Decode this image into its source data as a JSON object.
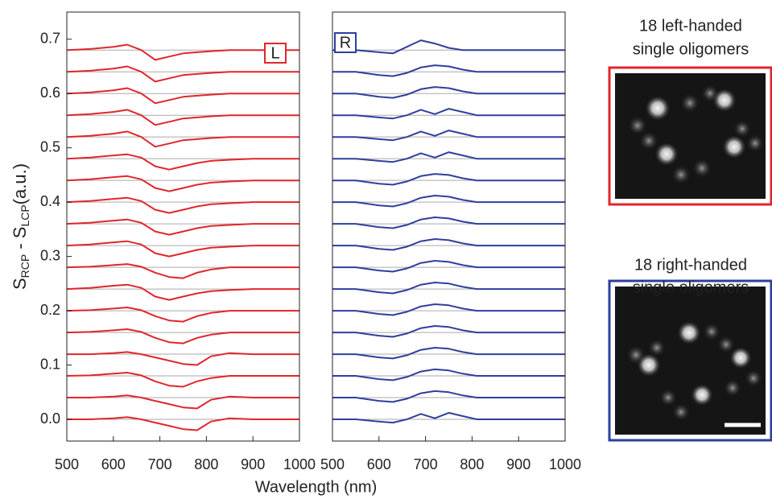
{
  "chart_data": [
    {
      "type": "line",
      "panel_label": "L",
      "color": "#e0262b",
      "ylabel": [
        "S",
        "RCP",
        " - S",
        "LCP",
        "(a.u.)"
      ],
      "xlabel": "Wavelength (nm)",
      "xlim": [
        500,
        1000
      ],
      "xticks": [
        500,
        600,
        700,
        800,
        900,
        1000
      ],
      "ylim": [
        -0.04,
        0.75
      ],
      "yticks": [
        {
          "value": 0,
          "label": "0.0"
        },
        0.1,
        0.2,
        0.3,
        0.4,
        0.5,
        0.6,
        0.7
      ],
      "baselines": [
        0,
        0.04,
        0.08,
        0.12,
        0.16,
        0.2,
        0.24,
        0.28,
        0.32,
        0.36,
        0.4,
        0.44,
        0.48,
        0.52,
        0.56,
        0.6,
        0.64,
        0.68
      ],
      "x": [
        500,
        550,
        600,
        630,
        660,
        690,
        720,
        750,
        780,
        810,
        850,
        900,
        1000
      ],
      "series": [
        {
          "values": [
            0,
            0,
            0.002,
            0.004,
            0,
            -0.006,
            -0.012,
            -0.018,
            -0.02,
            -0.004,
            0.002,
            0,
            0
          ]
        },
        {
          "values": [
            0.04,
            0.04,
            0.042,
            0.044,
            0.04,
            0.034,
            0.028,
            0.022,
            0.02,
            0.036,
            0.042,
            0.04,
            0.04
          ]
        },
        {
          "values": [
            0.08,
            0.081,
            0.084,
            0.086,
            0.081,
            0.07,
            0.062,
            0.06,
            0.07,
            0.076,
            0.08,
            0.08,
            0.08
          ]
        },
        {
          "values": [
            0.12,
            0.12,
            0.122,
            0.124,
            0.12,
            0.114,
            0.108,
            0.102,
            0.1,
            0.116,
            0.122,
            0.12,
            0.12
          ]
        },
        {
          "values": [
            0.16,
            0.161,
            0.164,
            0.166,
            0.161,
            0.15,
            0.142,
            0.14,
            0.15,
            0.156,
            0.16,
            0.16,
            0.16
          ]
        },
        {
          "values": [
            0.2,
            0.201,
            0.204,
            0.206,
            0.201,
            0.19,
            0.182,
            0.18,
            0.19,
            0.196,
            0.2,
            0.2,
            0.2
          ]
        },
        {
          "values": [
            0.24,
            0.242,
            0.246,
            0.248,
            0.242,
            0.226,
            0.22,
            0.226,
            0.232,
            0.236,
            0.238,
            0.24,
            0.24
          ]
        },
        {
          "values": [
            0.28,
            0.281,
            0.284,
            0.286,
            0.281,
            0.27,
            0.262,
            0.26,
            0.27,
            0.276,
            0.28,
            0.28,
            0.28
          ]
        },
        {
          "values": [
            0.32,
            0.322,
            0.326,
            0.328,
            0.322,
            0.306,
            0.3,
            0.306,
            0.312,
            0.316,
            0.318,
            0.32,
            0.32
          ]
        },
        {
          "values": [
            0.36,
            0.362,
            0.366,
            0.368,
            0.362,
            0.346,
            0.34,
            0.346,
            0.352,
            0.356,
            0.358,
            0.36,
            0.36
          ]
        },
        {
          "values": [
            0.4,
            0.402,
            0.406,
            0.408,
            0.402,
            0.386,
            0.38,
            0.386,
            0.392,
            0.396,
            0.398,
            0.4,
            0.4
          ]
        },
        {
          "values": [
            0.44,
            0.442,
            0.446,
            0.448,
            0.442,
            0.426,
            0.42,
            0.426,
            0.432,
            0.436,
            0.438,
            0.44,
            0.44
          ]
        },
        {
          "values": [
            0.48,
            0.482,
            0.486,
            0.488,
            0.482,
            0.466,
            0.46,
            0.466,
            0.472,
            0.476,
            0.478,
            0.48,
            0.48
          ]
        },
        {
          "values": [
            0.52,
            0.522,
            0.526,
            0.53,
            0.52,
            0.502,
            0.508,
            0.514,
            0.516,
            0.518,
            0.52,
            0.52,
            0.52
          ]
        },
        {
          "values": [
            0.56,
            0.562,
            0.566,
            0.57,
            0.56,
            0.542,
            0.548,
            0.554,
            0.556,
            0.558,
            0.56,
            0.56,
            0.56
          ]
        },
        {
          "values": [
            0.6,
            0.602,
            0.606,
            0.61,
            0.6,
            0.582,
            0.588,
            0.594,
            0.596,
            0.598,
            0.6,
            0.6,
            0.6
          ]
        },
        {
          "values": [
            0.64,
            0.642,
            0.646,
            0.65,
            0.64,
            0.622,
            0.628,
            0.634,
            0.636,
            0.638,
            0.64,
            0.64,
            0.64
          ]
        },
        {
          "values": [
            0.68,
            0.682,
            0.686,
            0.69,
            0.68,
            0.662,
            0.668,
            0.674,
            0.676,
            0.678,
            0.68,
            0.68,
            0.68
          ]
        }
      ]
    },
    {
      "type": "line",
      "panel_label": "R",
      "color": "#2e3f9c",
      "xlim": [
        500,
        1000
      ],
      "xticks": [
        500,
        600,
        700,
        800,
        900,
        1000
      ],
      "ylim": [
        -0.04,
        0.75
      ],
      "baselines": [
        0,
        0.04,
        0.08,
        0.12,
        0.16,
        0.2,
        0.24,
        0.28,
        0.32,
        0.36,
        0.4,
        0.44,
        0.48,
        0.52,
        0.56,
        0.6,
        0.64,
        0.68
      ],
      "x": [
        500,
        550,
        600,
        630,
        660,
        690,
        720,
        750,
        780,
        810,
        850,
        900,
        1000
      ],
      "series": [
        {
          "values": [
            0,
            0,
            -0.004,
            -0.006,
            0,
            0.01,
            0.002,
            0.012,
            0.006,
            0,
            0,
            0,
            0
          ]
        },
        {
          "values": [
            0.04,
            0.04,
            0.034,
            0.032,
            0.038,
            0.048,
            0.052,
            0.05,
            0.044,
            0.04,
            0.04,
            0.04,
            0.04
          ]
        },
        {
          "values": [
            0.08,
            0.08,
            0.074,
            0.072,
            0.078,
            0.088,
            0.092,
            0.09,
            0.084,
            0.08,
            0.08,
            0.08,
            0.08
          ]
        },
        {
          "values": [
            0.12,
            0.12,
            0.114,
            0.112,
            0.118,
            0.128,
            0.132,
            0.13,
            0.124,
            0.12,
            0.12,
            0.12,
            0.12
          ]
        },
        {
          "values": [
            0.16,
            0.16,
            0.154,
            0.152,
            0.158,
            0.168,
            0.172,
            0.17,
            0.164,
            0.16,
            0.16,
            0.16,
            0.16
          ]
        },
        {
          "values": [
            0.2,
            0.2,
            0.194,
            0.192,
            0.198,
            0.208,
            0.212,
            0.21,
            0.204,
            0.2,
            0.2,
            0.2,
            0.2
          ]
        },
        {
          "values": [
            0.24,
            0.24,
            0.234,
            0.232,
            0.238,
            0.248,
            0.252,
            0.25,
            0.244,
            0.24,
            0.24,
            0.24,
            0.24
          ]
        },
        {
          "values": [
            0.28,
            0.28,
            0.274,
            0.272,
            0.278,
            0.288,
            0.292,
            0.29,
            0.284,
            0.28,
            0.28,
            0.28,
            0.28
          ]
        },
        {
          "values": [
            0.32,
            0.32,
            0.314,
            0.312,
            0.318,
            0.328,
            0.332,
            0.33,
            0.324,
            0.32,
            0.32,
            0.32,
            0.32
          ]
        },
        {
          "values": [
            0.36,
            0.36,
            0.354,
            0.352,
            0.358,
            0.368,
            0.372,
            0.37,
            0.364,
            0.36,
            0.36,
            0.36,
            0.36
          ]
        },
        {
          "values": [
            0.4,
            0.4,
            0.394,
            0.392,
            0.398,
            0.408,
            0.412,
            0.41,
            0.404,
            0.4,
            0.4,
            0.4,
            0.4
          ]
        },
        {
          "values": [
            0.44,
            0.44,
            0.434,
            0.432,
            0.438,
            0.448,
            0.452,
            0.45,
            0.444,
            0.44,
            0.44,
            0.44,
            0.44
          ]
        },
        {
          "values": [
            0.48,
            0.48,
            0.476,
            0.474,
            0.48,
            0.49,
            0.482,
            0.492,
            0.486,
            0.48,
            0.48,
            0.48,
            0.48
          ]
        },
        {
          "values": [
            0.52,
            0.52,
            0.516,
            0.514,
            0.52,
            0.53,
            0.522,
            0.532,
            0.526,
            0.52,
            0.52,
            0.52,
            0.52
          ]
        },
        {
          "values": [
            0.56,
            0.56,
            0.556,
            0.554,
            0.56,
            0.57,
            0.562,
            0.572,
            0.566,
            0.56,
            0.56,
            0.56,
            0.56
          ]
        },
        {
          "values": [
            0.6,
            0.6,
            0.594,
            0.592,
            0.598,
            0.608,
            0.612,
            0.61,
            0.604,
            0.6,
            0.6,
            0.6,
            0.6
          ]
        },
        {
          "values": [
            0.64,
            0.64,
            0.634,
            0.632,
            0.638,
            0.648,
            0.652,
            0.65,
            0.644,
            0.64,
            0.64,
            0.64,
            0.64
          ]
        },
        {
          "values": [
            0.68,
            0.68,
            0.676,
            0.674,
            0.686,
            0.698,
            0.692,
            0.684,
            0.68,
            0.68,
            0.68,
            0.68,
            0.68
          ]
        }
      ]
    }
  ],
  "micrographs": [
    {
      "caption": [
        "18 left-handed",
        "single oligomers"
      ]
    },
    {
      "caption": [
        "18 right-handed",
        "single oligomers"
      ]
    }
  ]
}
